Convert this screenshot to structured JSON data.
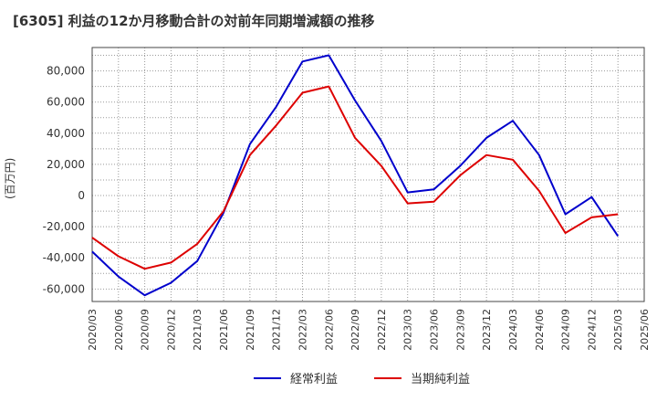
{
  "chart_data": {
    "type": "line",
    "title": "[6305]  利益の12か月移動合計の対前年同期増減額の推移",
    "ylabel": "(百万円)",
    "xlabel": "",
    "ylim": [
      -68000,
      95000
    ],
    "yticks": [
      80000,
      60000,
      40000,
      20000,
      0,
      -20000,
      -40000,
      -60000
    ],
    "ytick_labels": [
      "80,000",
      "60,000",
      "40,000",
      "20,000",
      "0",
      "-20,000",
      "-40,000",
      "-60,000"
    ],
    "categories": [
      "2020/03",
      "2020/06",
      "2020/09",
      "2020/12",
      "2021/03",
      "2021/06",
      "2021/09",
      "2021/12",
      "2022/03",
      "2022/06",
      "2022/09",
      "2022/12",
      "2023/03",
      "2023/06",
      "2023/09",
      "2023/12",
      "2024/03",
      "2024/06",
      "2024/09",
      "2024/12",
      "2025/03",
      "2025/06"
    ],
    "grid": true,
    "legend_position": "bottom",
    "series": [
      {
        "name": "経常利益",
        "color": "#0000cc",
        "values": [
          -36000,
          -52000,
          -64000,
          -56000,
          -42000,
          -11000,
          33000,
          57000,
          86000,
          90000,
          61000,
          35000,
          2000,
          4000,
          19000,
          37000,
          48000,
          26000,
          -12000,
          -1000,
          -26000,
          null
        ]
      },
      {
        "name": "当期純利益",
        "color": "#dd0000",
        "values": [
          -27000,
          -39000,
          -47000,
          -43000,
          -31000,
          -10000,
          26000,
          45000,
          66000,
          70000,
          37000,
          19000,
          -5000,
          -4000,
          13000,
          26000,
          23000,
          3000,
          -24000,
          -14000,
          -12000,
          null
        ]
      }
    ]
  }
}
